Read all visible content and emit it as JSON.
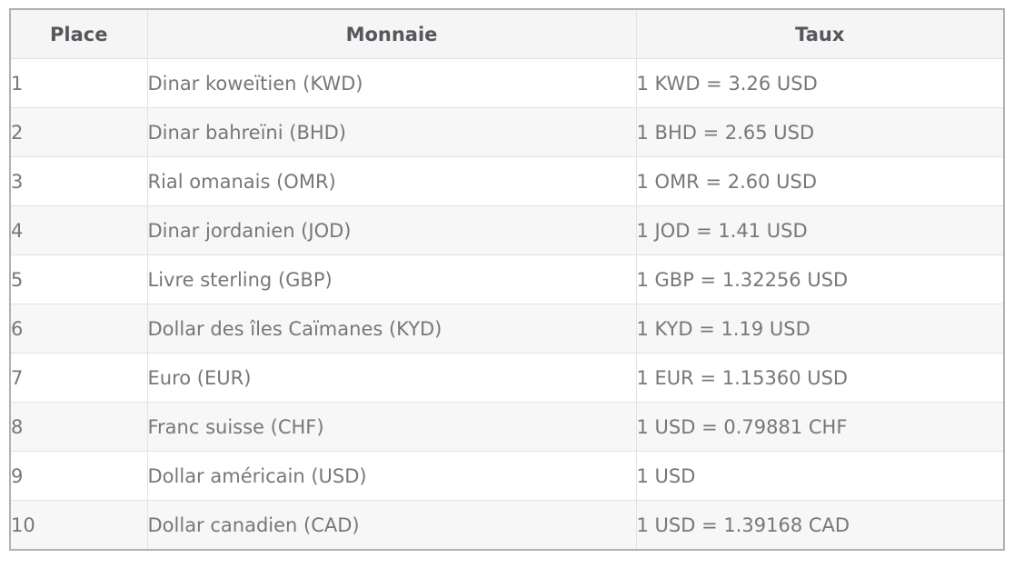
{
  "chart_data": {
    "type": "table",
    "columns": [
      "Place",
      "Monnaie",
      "Taux"
    ],
    "rows": [
      [
        "1",
        "Dinar koweïtien (KWD)",
        "1 KWD = 3.26 USD"
      ],
      [
        "2",
        "Dinar bahreïni (BHD)",
        "1 BHD = 2.65 USD"
      ],
      [
        "3",
        "Rial omanais (OMR)",
        "1 OMR = 2.60 USD"
      ],
      [
        "4",
        "Dinar jordanien (JOD)",
        "1 JOD = 1.41 USD"
      ],
      [
        "5",
        "Livre sterling (GBP)",
        "1 GBP = 1.32256 USD"
      ],
      [
        "6",
        "Dollar des îles Caïmanes (KYD)",
        "1 KYD = 1.19 USD"
      ],
      [
        "7",
        "Euro (EUR)",
        "1 EUR = 1.15360 USD"
      ],
      [
        "8",
        "Franc suisse (CHF)",
        "1 USD = 0.79881 CHF"
      ],
      [
        "9",
        "Dollar américain (USD)",
        "1 USD"
      ],
      [
        "10",
        "Dollar canadien (CAD)",
        "1 USD = 1.39168 CAD"
      ]
    ]
  },
  "table": {
    "headers": [
      "Place",
      "Monnaie",
      "Taux"
    ],
    "rows": [
      {
        "place": "1",
        "monnaie": "Dinar koweïtien (KWD)",
        "taux": "1 KWD = 3.26 USD"
      },
      {
        "place": "2",
        "monnaie": "Dinar bahreïni (BHD)",
        "taux": "1 BHD = 2.65 USD"
      },
      {
        "place": "3",
        "monnaie": "Rial omanais (OMR)",
        "taux": "1 OMR = 2.60 USD"
      },
      {
        "place": "4",
        "monnaie": "Dinar jordanien (JOD)",
        "taux": "1 JOD = 1.41 USD"
      },
      {
        "place": "5",
        "monnaie": "Livre sterling (GBP)",
        "taux": "1 GBP = 1.32256 USD"
      },
      {
        "place": "6",
        "monnaie": "Dollar des îles Caïmanes (KYD)",
        "taux": "1 KYD = 1.19 USD"
      },
      {
        "place": "7",
        "monnaie": "Euro (EUR)",
        "taux": "1 EUR = 1.15360 USD"
      },
      {
        "place": "8",
        "monnaie": "Franc suisse (CHF)",
        "taux": "1 USD = 0.79881 CHF"
      },
      {
        "place": "9",
        "monnaie": "Dollar américain (USD)",
        "taux": "1 USD"
      },
      {
        "place": "10",
        "monnaie": "Dollar canadien (CAD)",
        "taux": "1 USD = 1.39168 CAD"
      }
    ]
  },
  "colors": {
    "outer_border": "#b1b1b1",
    "grid_line": "#e2e2e2",
    "header_background": "#f5f5f5",
    "stripe_background": "#f7f7f7",
    "header_text": "#55575c",
    "body_text": "#75777a"
  }
}
